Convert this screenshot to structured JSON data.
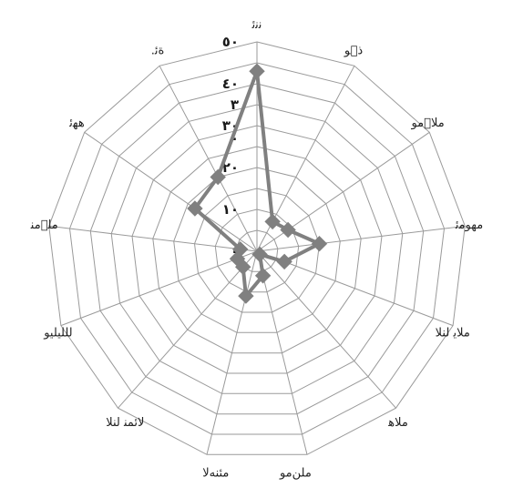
{
  "chart_data": {
    "type": "radar",
    "title": "",
    "categories": [
      "ﻧﻧﺋ",
      "ﺫ􏰀ﻮ",
      "ﻣﻼ􏰀ﻣﻮ",
      "ﻣﻬﻮﻣﺋ",
      "ﻣﻼﻳ ﻟﻨﻼ",
      "ﻣﻼﻫ",
      "ﻣﻠﻦﻣﻮ",
      "ﻣﺌﻨﻪﻻ",
      "ﻻﺋﻤﻨ ﻟﻨﻼ",
      "ﻟﻠﻠﻴﻠﻴﻮ",
      "ﻣﻠ􏰀ﻣﻨ",
      "ﻫﻬﺋ",
      "ﺓﺋ."
    ],
    "series": [
      {
        "values": [
          43,
          8,
          9,
          15,
          7,
          1,
          6,
          11,
          5,
          5,
          4,
          18,
          20
        ],
        "color": "#808080"
      }
    ],
    "rmin": 0,
    "rmax": 50,
    "tick_values": [
      0,
      10,
      20,
      30,
      40,
      50
    ],
    "tick_labels": [
      "٠",
      "١٠",
      "٢٠",
      "٣٠",
      "٤٠",
      "٥٠"
    ],
    "stray_tick_texts": [
      "٣",
      "٠"
    ],
    "grid": true,
    "legend": "none"
  }
}
